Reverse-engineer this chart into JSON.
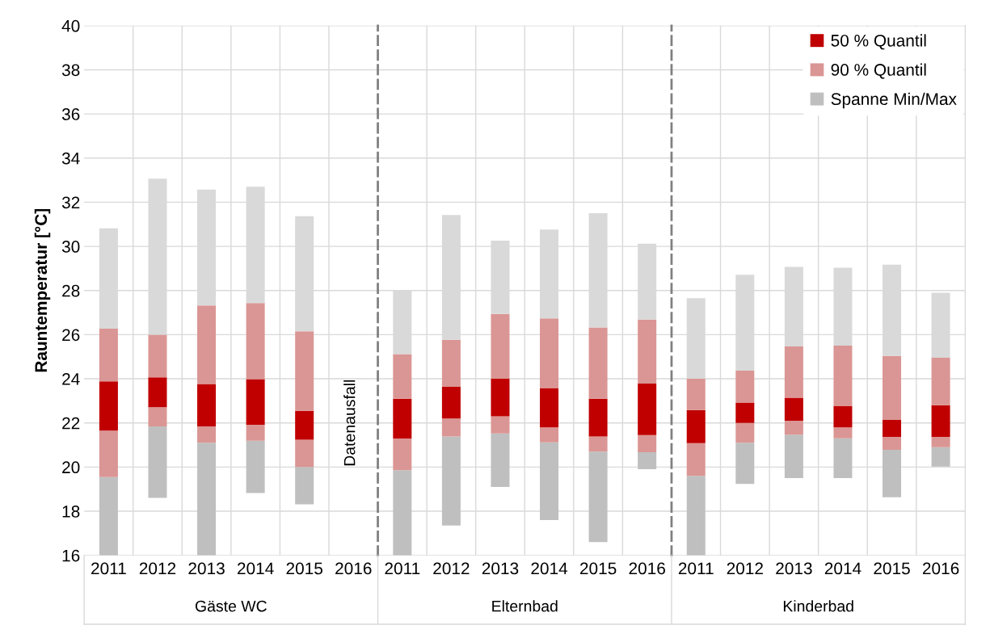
{
  "chart_data": [
    {
      "type": "bar",
      "xlabel": "Gäste WC",
      "ylabel": "Rauntemperatur [°C]",
      "categories": [
        "2011",
        "2012",
        "2013",
        "2014",
        "2015",
        "2016"
      ],
      "ylim": [
        16,
        40
      ],
      "yticks": [
        16,
        18,
        20,
        22,
        24,
        26,
        28,
        30,
        32,
        34,
        36,
        38,
        40
      ],
      "grid": true,
      "legend": false,
      "annotations": [
        "Datenausfall"
      ],
      "series": [
        {
          "color": "#bfbfbf",
          "base": [
            16.0,
            18.6,
            16.0,
            18.82,
            18.31,
            null
          ],
          "values": [
            3.55,
            3.24,
            5.1,
            2.37,
            1.69,
            null
          ]
        },
        {
          "color": "#da9694",
          "base": [
            19.55,
            21.84,
            21.1,
            21.19,
            20.0,
            null
          ],
          "values": [
            2.1,
            0.87,
            0.74,
            0.73,
            1.24,
            null
          ]
        },
        {
          "color": "#c00000",
          "base": [
            21.65,
            22.71,
            21.84,
            21.92,
            21.24,
            null
          ],
          "values": [
            2.23,
            1.36,
            1.92,
            2.06,
            1.31,
            null
          ]
        },
        {
          "color": "#da9694",
          "base": [
            23.88,
            24.07,
            23.76,
            23.98,
            22.55,
            null
          ],
          "values": [
            2.39,
            1.93,
            3.56,
            3.45,
            3.6,
            null
          ]
        },
        {
          "color": "#d9d9d9",
          "base": [
            26.27,
            26.0,
            27.32,
            27.43,
            26.15,
            null
          ],
          "values": [
            4.55,
            7.07,
            5.25,
            5.27,
            5.22,
            null
          ]
        }
      ]
    },
    {
      "type": "bar",
      "xlabel": "Elternbad",
      "categories": [
        "2011",
        "2012",
        "2013",
        "2014",
        "2015",
        "2016"
      ],
      "ylim": [
        16,
        40
      ],
      "yticks": [
        16,
        18,
        20,
        22,
        24,
        26,
        28,
        30,
        32,
        34,
        36,
        38,
        40
      ],
      "grid": true,
      "legend": false,
      "tick_labels": "x",
      "series": [
        {
          "color": "#bfbfbf",
          "base": [
            16.0,
            17.35,
            19.1,
            17.6,
            16.6,
            19.9
          ],
          "values": [
            3.86,
            4.04,
            2.42,
            3.52,
            4.1,
            0.77
          ]
        },
        {
          "color": "#da9694",
          "base": [
            19.86,
            21.39,
            21.52,
            21.12,
            20.7,
            20.67
          ],
          "values": [
            1.43,
            0.81,
            0.78,
            0.68,
            0.69,
            0.78
          ]
        },
        {
          "color": "#c00000",
          "base": [
            21.29,
            22.2,
            22.3,
            21.8,
            21.39,
            21.45
          ],
          "values": [
            1.81,
            1.44,
            1.7,
            1.78,
            1.71,
            2.33
          ]
        },
        {
          "color": "#da9694",
          "base": [
            23.1,
            23.64,
            24.0,
            23.58,
            23.1,
            23.78
          ],
          "values": [
            2.02,
            2.13,
            2.94,
            3.16,
            3.23,
            2.9
          ]
        },
        {
          "color": "#d9d9d9",
          "base": [
            25.12,
            25.77,
            26.94,
            26.74,
            26.33,
            26.68
          ],
          "values": [
            2.88,
            5.65,
            3.32,
            4.02,
            5.17,
            3.44
          ]
        }
      ]
    },
    {
      "type": "bar",
      "xlabel": "Kinderbad",
      "categories": [
        "2011",
        "2012",
        "2013",
        "2014",
        "2015",
        "2016"
      ],
      "ylim": [
        16,
        40
      ],
      "yticks": [
        16,
        18,
        20,
        22,
        24,
        26,
        28,
        30,
        32,
        34,
        36,
        38,
        40
      ],
      "grid": true,
      "legend": "top right",
      "tick_labels": "x",
      "series": [
        {
          "name": "Spanne Min/Max",
          "color": "#bfbfbf",
          "base": [
            16.0,
            19.24,
            19.5,
            19.5,
            18.63,
            20.02
          ],
          "values": [
            3.6,
            1.86,
            1.97,
            1.8,
            2.15,
            0.88
          ]
        },
        {
          "name": "90 % Quantil",
          "color": "#da9694",
          "base": [
            19.6,
            21.1,
            21.47,
            21.3,
            20.78,
            20.9
          ],
          "values": [
            1.48,
            0.9,
            0.63,
            0.5,
            0.59,
            0.47
          ]
        },
        {
          "name": "50 % Quantil",
          "color": "#c00000",
          "base": [
            21.08,
            22.0,
            22.1,
            21.8,
            21.37,
            21.37
          ],
          "values": [
            1.5,
            0.92,
            1.04,
            0.96,
            0.77,
            1.43
          ]
        },
        {
          "color": "#da9694",
          "base": [
            22.58,
            22.92,
            23.14,
            22.76,
            22.14,
            22.8
          ],
          "values": [
            1.42,
            1.45,
            2.33,
            2.74,
            2.9,
            2.15
          ]
        },
        {
          "color": "#d9d9d9",
          "base": [
            24.0,
            24.37,
            25.47,
            25.5,
            25.04,
            24.95
          ],
          "values": [
            3.65,
            4.34,
            3.6,
            3.53,
            4.13,
            2.95
          ]
        }
      ]
    }
  ]
}
